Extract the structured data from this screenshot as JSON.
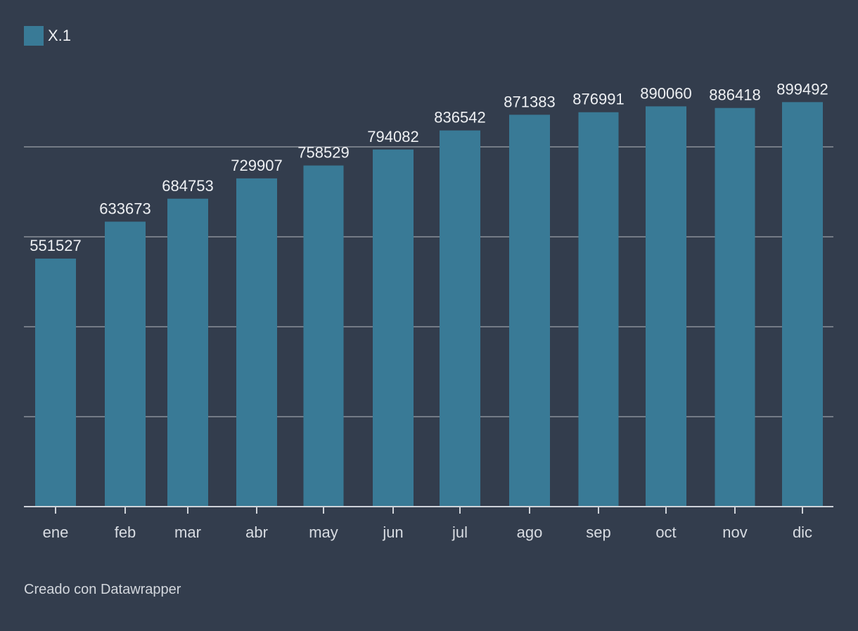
{
  "legend": {
    "label": "X.1",
    "color": "#397a96"
  },
  "footer": {
    "credit": "Creado con Datawrapper"
  },
  "colors": {
    "background": "#333d4d",
    "bar": "#397a96",
    "grid": "#8a9099",
    "text": "#eef0f3",
    "tick_text": "#d8dce2"
  },
  "chart_data": {
    "type": "bar",
    "categories": [
      "ene",
      "feb",
      "mar",
      "abr",
      "may",
      "jun",
      "jul",
      "ago",
      "sep",
      "oct",
      "nov",
      "dic"
    ],
    "series": [
      {
        "name": "X.1",
        "values": [
          551527,
          633673,
          684753,
          729907,
          758529,
          794082,
          836542,
          871383,
          876991,
          890060,
          886418,
          899492
        ]
      }
    ],
    "title": "",
    "xlabel": "",
    "ylabel": "",
    "ylim": [
      0,
      1000000
    ],
    "gridlines": [
      200000,
      400000,
      600000,
      800000
    ],
    "grid": true,
    "legend_position": "top-left",
    "data_labels": true
  }
}
